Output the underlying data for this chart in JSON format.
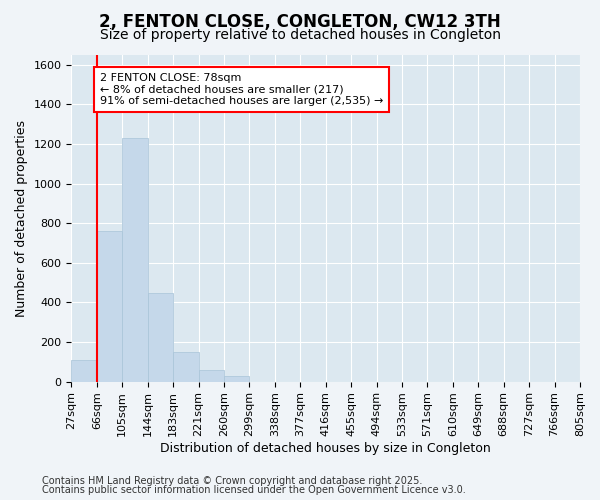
{
  "title_line1": "2, FENTON CLOSE, CONGLETON, CW12 3TH",
  "title_line2": "Size of property relative to detached houses in Congleton",
  "xlabel": "Distribution of detached houses by size in Congleton",
  "ylabel": "Number of detached properties",
  "bin_labels": [
    "27sqm",
    "66sqm",
    "105sqm",
    "144sqm",
    "183sqm",
    "221sqm",
    "260sqm",
    "299sqm",
    "338sqm",
    "377sqm",
    "416sqm",
    "455sqm",
    "494sqm",
    "533sqm",
    "571sqm",
    "610sqm",
    "649sqm",
    "688sqm",
    "727sqm",
    "766sqm",
    "805sqm"
  ],
  "bar_heights": [
    110,
    760,
    1230,
    450,
    150,
    60,
    30,
    0,
    0,
    0,
    0,
    0,
    0,
    0,
    0,
    0,
    0,
    0,
    0,
    0
  ],
  "bar_color": "#c5d8ea",
  "bar_edge_color": "#a8c4d8",
  "vline_x": 1.0,
  "annotation_text": "2 FENTON CLOSE: 78sqm\n← 8% of detached houses are smaller (217)\n91% of semi-detached houses are larger (2,535) →",
  "annotation_box_facecolor": "white",
  "annotation_box_edgecolor": "red",
  "vline_color": "red",
  "ylim": [
    0,
    1650
  ],
  "yticks": [
    0,
    200,
    400,
    600,
    800,
    1000,
    1200,
    1400,
    1600
  ],
  "fig_facecolor": "#f0f4f8",
  "axes_facecolor": "#dce8f0",
  "grid_color": "white",
  "footer_line1": "Contains HM Land Registry data © Crown copyright and database right 2025.",
  "footer_line2": "Contains public sector information licensed under the Open Government Licence v3.0.",
  "title1_fontsize": 12,
  "title2_fontsize": 10,
  "axis_label_fontsize": 9,
  "tick_fontsize": 8,
  "annotation_fontsize": 8,
  "footer_fontsize": 7
}
